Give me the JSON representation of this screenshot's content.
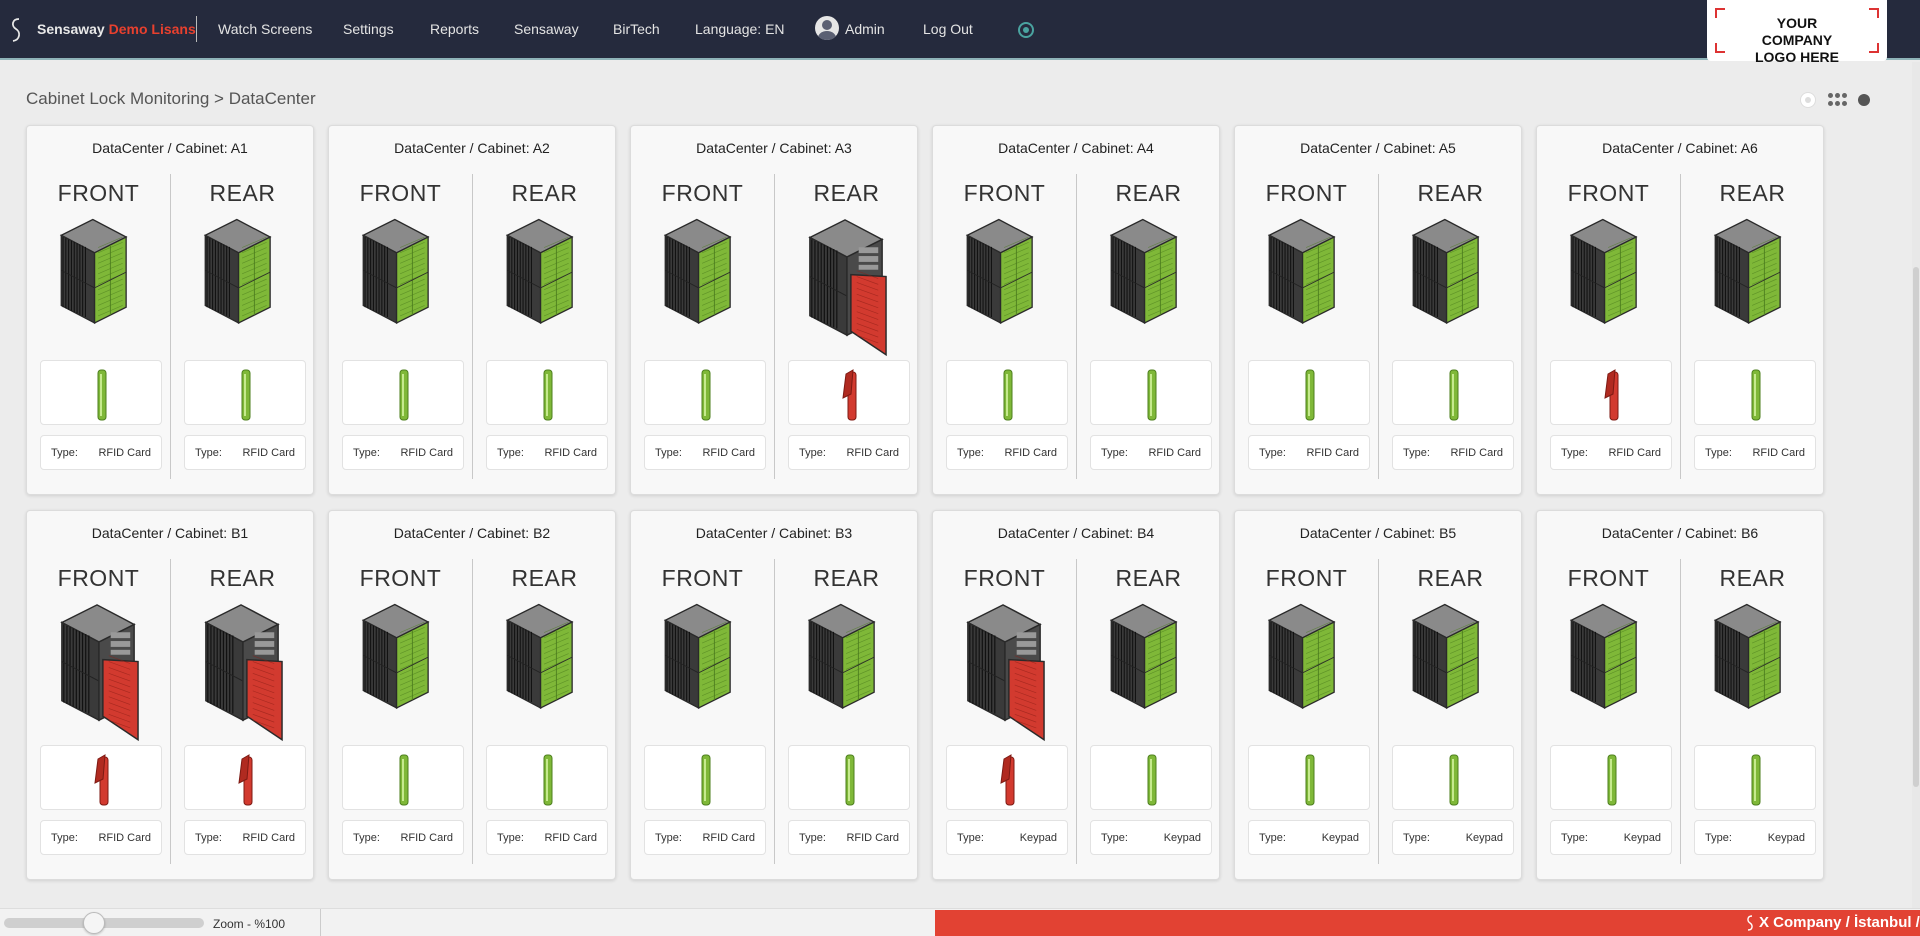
{
  "header": {
    "brand_name": "Sensaway",
    "brand_license": "Demo Lisans",
    "nav": [
      {
        "label": "Watch Screens"
      },
      {
        "label": "Settings"
      },
      {
        "label": "Reports"
      },
      {
        "label": "Sensaway"
      },
      {
        "label": "BirTech"
      },
      {
        "label": "Language: EN"
      }
    ],
    "user_label": "Admin",
    "logout_label": "Log Out",
    "company_logo_text": "YOUR COMPANY LOGO HERE"
  },
  "breadcrumb": "Cabinet Lock Monitoring > DataCenter",
  "labels": {
    "front": "FRONT",
    "rear": "REAR",
    "type": "Type:"
  },
  "colors": {
    "locked": "#7fb838",
    "unlocked": "#d23a2f",
    "topbar": "#252a3d",
    "ticker": "#e24233"
  },
  "cabinets": [
    {
      "title": "DataCenter / Cabinet: A1",
      "front": {
        "state": "locked",
        "type": "RFID Card"
      },
      "rear": {
        "state": "locked",
        "type": "RFID Card"
      }
    },
    {
      "title": "DataCenter / Cabinet: A2",
      "front": {
        "state": "locked",
        "type": "RFID Card"
      },
      "rear": {
        "state": "locked",
        "type": "RFID Card"
      }
    },
    {
      "title": "DataCenter / Cabinet: A3",
      "front": {
        "state": "locked",
        "type": "RFID Card"
      },
      "rear": {
        "state": "unlocked",
        "type": "RFID Card"
      }
    },
    {
      "title": "DataCenter / Cabinet: A4",
      "front": {
        "state": "locked",
        "type": "RFID Card"
      },
      "rear": {
        "state": "locked",
        "type": "RFID Card"
      }
    },
    {
      "title": "DataCenter / Cabinet: A5",
      "front": {
        "state": "locked",
        "type": "RFID Card"
      },
      "rear": {
        "state": "locked",
        "type": "RFID Card"
      }
    },
    {
      "title": "DataCenter / Cabinet: A6",
      "front": {
        "state": "unlocked-handle",
        "type": "RFID Card"
      },
      "rear": {
        "state": "locked",
        "type": "RFID Card"
      }
    },
    {
      "title": "DataCenter / Cabinet: B1",
      "front": {
        "state": "unlocked",
        "type": "RFID Card"
      },
      "rear": {
        "state": "unlocked",
        "type": "RFID Card"
      }
    },
    {
      "title": "DataCenter / Cabinet: B2",
      "front": {
        "state": "locked",
        "type": "RFID Card"
      },
      "rear": {
        "state": "locked",
        "type": "RFID Card"
      }
    },
    {
      "title": "DataCenter / Cabinet: B3",
      "front": {
        "state": "locked",
        "type": "RFID Card"
      },
      "rear": {
        "state": "locked",
        "type": "RFID Card"
      }
    },
    {
      "title": "DataCenter / Cabinet: B4",
      "front": {
        "state": "unlocked",
        "type": "Keypad"
      },
      "rear": {
        "state": "locked",
        "type": "Keypad"
      }
    },
    {
      "title": "DataCenter / Cabinet: B5",
      "front": {
        "state": "locked",
        "type": "Keypad"
      },
      "rear": {
        "state": "locked",
        "type": "Keypad"
      }
    },
    {
      "title": "DataCenter / Cabinet: B6",
      "front": {
        "state": "locked",
        "type": "Keypad"
      },
      "rear": {
        "state": "locked",
        "type": "Keypad"
      }
    }
  ],
  "footer": {
    "zoom_label": "Zoom - %100",
    "zoom_value": 0.45,
    "ticker_text": "X Company / İstanbul / I"
  }
}
